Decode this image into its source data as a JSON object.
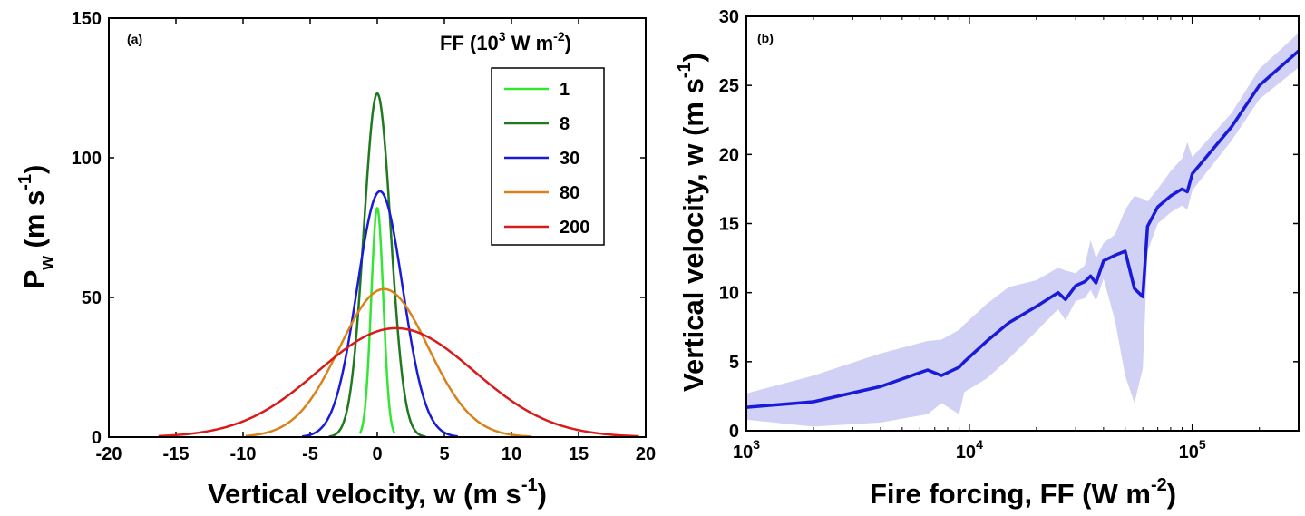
{
  "chart_data": [
    {
      "type": "line",
      "panel_label": "(a)",
      "xlabel_main": "Vertical velocity, w (m s",
      "xlabel_sup": "-1",
      "xlabel_end": ")",
      "ylabel_main": "P",
      "ylabel_sub": "w",
      "ylabel_unit": " (m s",
      "ylabel_sup": "-1",
      "ylabel_end": ")",
      "legend_title_main": "FF (10",
      "legend_title_sup1": "3",
      "legend_title_mid": " W m",
      "legend_title_sup2": "-2",
      "legend_title_end": ")",
      "xlim": [
        -20,
        20
      ],
      "ylim": [
        0,
        150
      ],
      "xticks": [
        "-20",
        "-15",
        "-10",
        "-5",
        "0",
        "5",
        "10",
        "15",
        "20"
      ],
      "yticks": [
        "0",
        "50",
        "100",
        "150"
      ],
      "series": [
        {
          "name": "1",
          "color": "#33e633",
          "peak": 82,
          "mean": 0.0,
          "sd": 0.45,
          "xmin": -1.3,
          "xmax": 1.3
        },
        {
          "name": "8",
          "color": "#1f7a1f",
          "peak": 123,
          "mean": 0.0,
          "sd": 1.0,
          "xmin": -3.6,
          "xmax": 3.6
        },
        {
          "name": "30",
          "color": "#1a1ad9",
          "peak": 88,
          "mean": 0.2,
          "sd": 1.7,
          "xmin": -5.6,
          "xmax": 6.0
        },
        {
          "name": "80",
          "color": "#d9821a",
          "peak": 53,
          "mean": 0.5,
          "sd": 3.3,
          "xmin": -9.8,
          "xmax": 11.5
        },
        {
          "name": "200",
          "color": "#d91a1a",
          "peak": 39,
          "mean": 1.4,
          "sd": 5.8,
          "xmin": -16.3,
          "xmax": 19.5
        }
      ]
    },
    {
      "type": "line",
      "panel_label": "(b)",
      "xlabel_main": "Fire forcing, FF (W m",
      "xlabel_sup": "-2",
      "xlabel_end": ")",
      "ylabel_main": "Vertical velocity, w (m s",
      "ylabel_sup": "-1",
      "ylabel_end": ")",
      "xscale": "log",
      "xlim": [
        1000,
        300000
      ],
      "ylim": [
        0,
        30
      ],
      "xticks": [
        {
          "base": "10",
          "exp": "3",
          "value": 1000
        },
        {
          "base": "10",
          "exp": "4",
          "value": 10000
        },
        {
          "base": "10",
          "exp": "5",
          "value": 100000
        }
      ],
      "yticks": [
        "0",
        "5",
        "10",
        "15",
        "20",
        "25",
        "30"
      ],
      "line_color": "#1a1ad9",
      "band_color": "#b8b8f0",
      "series": [
        {
          "x": [
            1000,
            2000,
            4000,
            6500,
            7500,
            9000,
            9500,
            12000,
            15000,
            20000,
            25000,
            27000,
            30000,
            33000,
            35000,
            37000,
            40000,
            45000,
            50000,
            55000,
            60000,
            63000,
            70000,
            80000,
            90000,
            95000,
            100000,
            150000,
            200000,
            300000
          ],
          "y": [
            1.7,
            2.1,
            3.2,
            4.4,
            4.0,
            4.6,
            5.0,
            6.5,
            7.8,
            9.0,
            10.0,
            9.5,
            10.5,
            10.8,
            11.2,
            10.7,
            12.3,
            12.7,
            13.0,
            10.3,
            9.7,
            14.8,
            16.2,
            17.0,
            17.5,
            17.3,
            18.6,
            22.0,
            25.0,
            27.5
          ],
          "lower": [
            0.8,
            0.3,
            0.6,
            1.2,
            2.0,
            1.2,
            2.8,
            3.8,
            5.2,
            7.2,
            8.8,
            8.0,
            9.4,
            9.6,
            10.2,
            9.4,
            11.0,
            8.0,
            4.0,
            2.0,
            4.5,
            13.0,
            15.0,
            15.8,
            16.3,
            16.0,
            17.4,
            21.0,
            24.0,
            26.3
          ],
          "upper": [
            2.7,
            4.0,
            5.6,
            6.5,
            6.6,
            7.3,
            7.7,
            9.2,
            10.4,
            10.9,
            11.8,
            11.6,
            11.4,
            12.0,
            13.8,
            12.5,
            13.6,
            14.2,
            16.0,
            17.0,
            16.8,
            16.6,
            17.5,
            18.8,
            19.7,
            20.9,
            19.8,
            23.0,
            26.2,
            28.8
          ]
        }
      ]
    }
  ]
}
